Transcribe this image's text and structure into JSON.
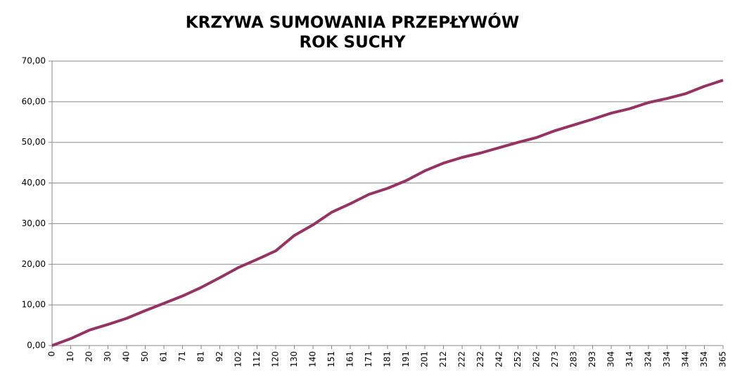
{
  "chart_data": {
    "type": "line",
    "title": [
      "KRZYWA SUMOWANIA PRZEPŁYWÓW",
      "ROK SUCHY"
    ],
    "categories": [
      "0",
      "10",
      "20",
      "30",
      "40",
      "50",
      "61",
      "71",
      "81",
      "92",
      "102",
      "112",
      "120",
      "130",
      "140",
      "151",
      "161",
      "171",
      "181",
      "191",
      "201",
      "212",
      "222",
      "232",
      "242",
      "252",
      "262",
      "273",
      "283",
      "293",
      "304",
      "314",
      "324",
      "334",
      "344",
      "354",
      "365"
    ],
    "series": [
      {
        "color": "#953462",
        "values": [
          0,
          1.7,
          3.8,
          5.2,
          6.7,
          8.6,
          10.4,
          12.2,
          14.3,
          16.7,
          19.2,
          21.2,
          23.3,
          27.1,
          29.7,
          32.8,
          34.9,
          37.2,
          38.7,
          40.6,
          43.0,
          44.9,
          46.3,
          47.4,
          48.7,
          50.0,
          51.2,
          52.9,
          54.3,
          55.7,
          57.2,
          58.3,
          59.8,
          60.8,
          62.0,
          63.8,
          65.3
        ]
      }
    ],
    "ylim": [
      0,
      70
    ],
    "yticks": [
      {
        "value": 0,
        "label": "0,00"
      },
      {
        "value": 10,
        "label": "10,00"
      },
      {
        "value": 20,
        "label": "20,00"
      },
      {
        "value": 30,
        "label": "30,00"
      },
      {
        "value": 40,
        "label": "40,00"
      },
      {
        "value": 50,
        "label": "50,00"
      },
      {
        "value": 60,
        "label": "60,00"
      },
      {
        "value": 70,
        "label": "70,00"
      }
    ],
    "grid": true
  }
}
